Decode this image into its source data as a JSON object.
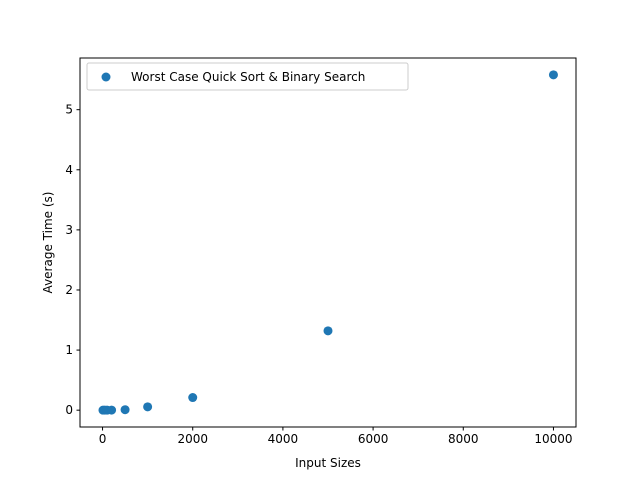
{
  "chart_data": {
    "type": "scatter",
    "title": "",
    "xlabel": "Input Sizes",
    "ylabel": "Average Time (s)",
    "xlim": [
      -500,
      10500
    ],
    "ylim": [
      -0.28,
      5.86
    ],
    "xticks": [
      0,
      2000,
      4000,
      6000,
      8000,
      10000
    ],
    "yticks": [
      0,
      1,
      2,
      3,
      4,
      5
    ],
    "grid": false,
    "legend_position": "top-left",
    "series": [
      {
        "name": "Worst Case Quick Sort & Binary Search",
        "color": "#1f77b4",
        "x": [
          10,
          50,
          100,
          200,
          500,
          1000,
          2000,
          5000,
          10000
        ],
        "y": [
          0.0,
          0.0,
          0.0,
          0.001,
          0.008,
          0.055,
          0.21,
          1.32,
          5.58
        ]
      }
    ]
  }
}
